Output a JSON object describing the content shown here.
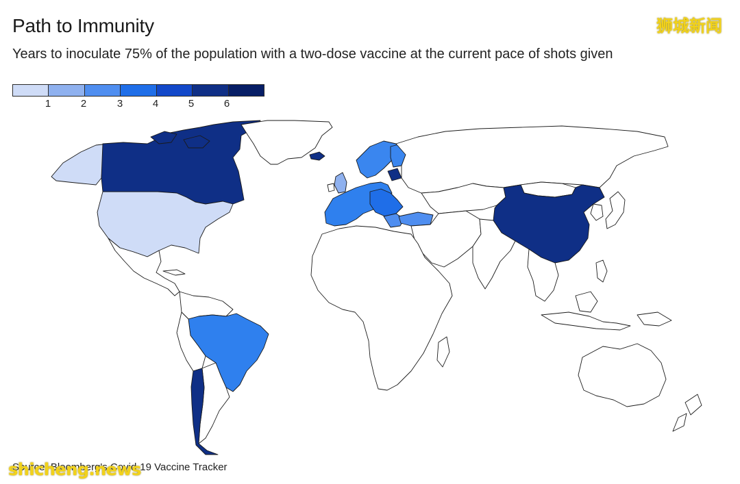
{
  "header": {
    "title": "Path to Immunity",
    "subtitle": "Years to inoculate 75% of the population with a two-dose vaccine at the current pace of shots given"
  },
  "watermarks": {
    "chinese": "狮城新闻",
    "latin": "shicheng.news"
  },
  "legend": {
    "ticks": [
      "1",
      "2",
      "3",
      "4",
      "5",
      "6"
    ],
    "colors": [
      "#cfdcf7",
      "#8fb1ef",
      "#4f8ef0",
      "#1f6ee8",
      "#1248c9",
      "#0f2f86",
      "#071e66"
    ]
  },
  "map": {
    "highlighted_regions": [
      {
        "region": "United States",
        "years_bin": 1,
        "color": "#cfdcf7"
      },
      {
        "region": "Alaska",
        "years_bin": 1,
        "color": "#cfdcf7"
      },
      {
        "region": "Canada",
        "years_bin": 7,
        "color": "#0f2f86"
      },
      {
        "region": "Brazil",
        "years_bin": 3,
        "color": "#2f80ee"
      },
      {
        "region": "Chile",
        "years_bin": 7,
        "color": "#0f2f86"
      },
      {
        "region": "China",
        "years_bin": 7,
        "color": "#0f2f86"
      },
      {
        "region": "Scandinavia",
        "years_bin": 3,
        "color": "#3a86ef"
      },
      {
        "region": "Baltics",
        "years_bin": 7,
        "color": "#0f2f86"
      },
      {
        "region": "Western Europe",
        "years_bin": 3,
        "color": "#2f80ee"
      },
      {
        "region": "Central Europe",
        "years_bin": 4,
        "color": "#1f6ee8"
      },
      {
        "region": "Turkey",
        "years_bin": 3,
        "color": "#4f8ef0"
      },
      {
        "region": "United Kingdom",
        "years_bin": 2,
        "color": "#8fb1ef"
      }
    ],
    "default_fill": "#ffffff",
    "stroke": "#1a1a1a"
  },
  "footer": {
    "source": "Source: Bloomberg's Covid-19 Vaccine Tracker"
  }
}
